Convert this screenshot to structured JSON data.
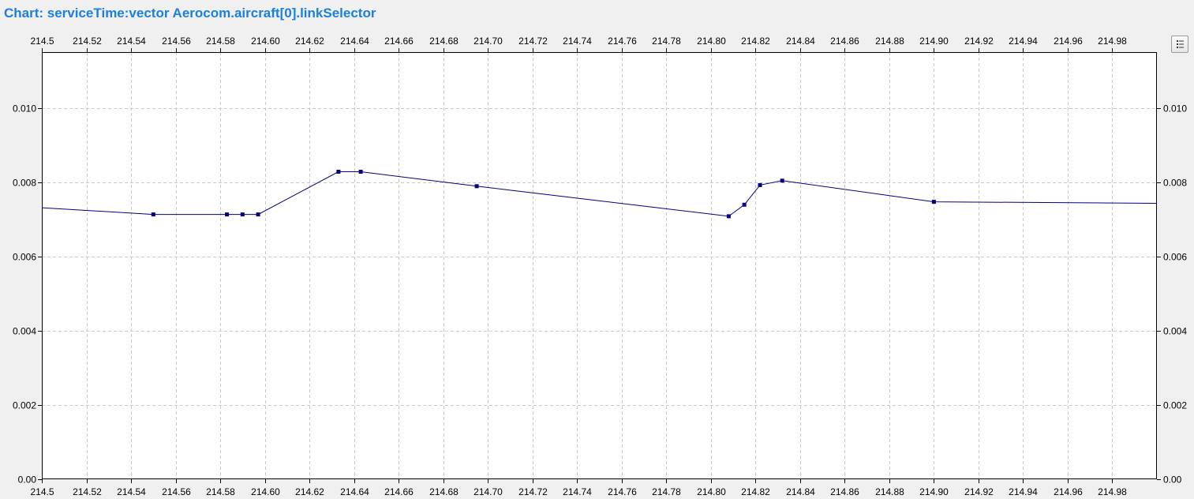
{
  "header": {
    "title": "Chart: serviceTime:vector Aerocom.aircraft[0].linkSelector"
  },
  "toolbar": {
    "legend_button_icon": "list-icon"
  },
  "colors": {
    "line": "#000080",
    "marker": "#000080",
    "title": "#1a7fe0",
    "grid": "#c8c8c8",
    "background": "#f0f0f0",
    "plot_background": "#ffffff"
  },
  "chart_data": {
    "type": "line",
    "title": "serviceTime:vector Aerocom.aircraft[0].linkSelector",
    "xlabel": "",
    "ylabel": "",
    "xlim": [
      214.5,
      215.0
    ],
    "ylim": [
      0.0,
      0.0115
    ],
    "grid": true,
    "x_axes": [
      "top",
      "bottom"
    ],
    "y_axes": [
      "left",
      "right"
    ],
    "x_ticks": [
      214.5,
      214.52,
      214.54,
      214.56,
      214.58,
      214.6,
      214.62,
      214.64,
      214.66,
      214.68,
      214.7,
      214.72,
      214.74,
      214.76,
      214.78,
      214.8,
      214.82,
      214.84,
      214.86,
      214.88,
      214.9,
      214.92,
      214.94,
      214.96,
      214.98
    ],
    "x_tick_labels": [
      "214.5",
      "214.52",
      "214.54",
      "214.56",
      "214.58",
      "214.60",
      "214.62",
      "214.64",
      "214.66",
      "214.68",
      "214.70",
      "214.72",
      "214.74",
      "214.76",
      "214.78",
      "214.80",
      "214.82",
      "214.84",
      "214.86",
      "214.88",
      "214.90",
      "214.92",
      "214.94",
      "214.96",
      "214.98"
    ],
    "y_ticks": [
      0.0,
      0.002,
      0.004,
      0.006,
      0.008,
      0.01
    ],
    "y_tick_labels": [
      "0.00",
      "0.002",
      "0.004",
      "0.006",
      "0.008",
      "0.010"
    ],
    "series": [
      {
        "line_start": {
          "x": 214.5,
          "y": 0.00731
        },
        "points": [
          {
            "x": 214.55,
            "y": 0.00713
          },
          {
            "x": 214.583,
            "y": 0.00713
          },
          {
            "x": 214.59,
            "y": 0.00713
          },
          {
            "x": 214.597,
            "y": 0.00713
          },
          {
            "x": 214.633,
            "y": 0.00828
          },
          {
            "x": 214.643,
            "y": 0.00828
          },
          {
            "x": 214.695,
            "y": 0.00789
          },
          {
            "x": 214.808,
            "y": 0.00708
          },
          {
            "x": 214.815,
            "y": 0.00739
          },
          {
            "x": 214.822,
            "y": 0.00792
          },
          {
            "x": 214.832,
            "y": 0.00804
          },
          {
            "x": 214.9,
            "y": 0.00747
          }
        ],
        "line_end": {
          "x": 215.0,
          "y": 0.00743
        }
      }
    ]
  }
}
